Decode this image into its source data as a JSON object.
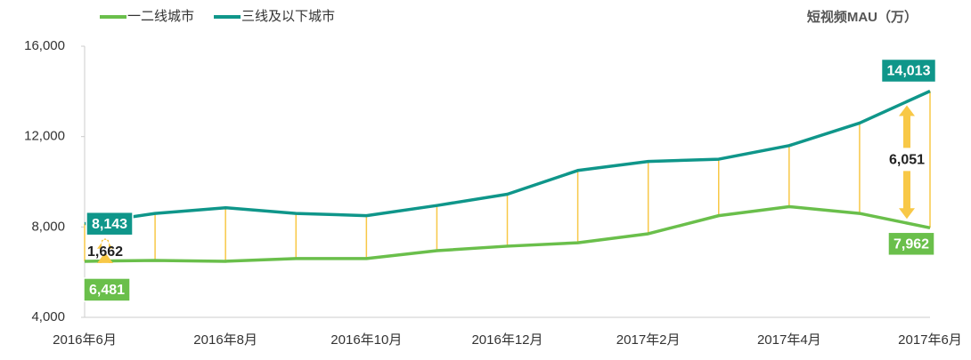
{
  "chart_data": {
    "type": "line",
    "unit_label": "短视频MAU（万）",
    "categories": [
      "2016年6月",
      null,
      "2016年8月",
      null,
      "2016年10月",
      null,
      "2016年12月",
      null,
      "2017年2月",
      null,
      "2017年4月",
      null,
      "2017年6月"
    ],
    "series": [
      {
        "name": "一二线城市",
        "color": "#6abf4b",
        "values": [
          6481,
          6520,
          6480,
          6600,
          6600,
          6950,
          7150,
          7300,
          7700,
          8500,
          8900,
          8600,
          7962
        ],
        "value_labels": [
          "6,481",
          null,
          null,
          null,
          null,
          null,
          null,
          null,
          null,
          null,
          null,
          null,
          "7,962"
        ]
      },
      {
        "name": "三线及以下城市",
        "color": "#0f968a",
        "values": [
          8143,
          8600,
          8850,
          8600,
          8500,
          8950,
          9450,
          10500,
          10900,
          11000,
          11600,
          12600,
          14013
        ],
        "value_labels": [
          "8,143",
          null,
          null,
          null,
          null,
          null,
          null,
          null,
          null,
          null,
          null,
          null,
          "14,013"
        ]
      }
    ],
    "differences": [
      {
        "value": 1662,
        "label": "1,662"
      },
      {
        "value": 6051,
        "label": "6,051"
      }
    ],
    "connector_color": "#f8c847",
    "ylim": [
      4000,
      16000
    ],
    "yticks": [
      {
        "value": 4000,
        "label": "4,000"
      },
      {
        "value": 8000,
        "label": "8,000"
      },
      {
        "value": 12000,
        "label": "12,000"
      },
      {
        "value": 16000,
        "label": "16,000"
      }
    ]
  }
}
